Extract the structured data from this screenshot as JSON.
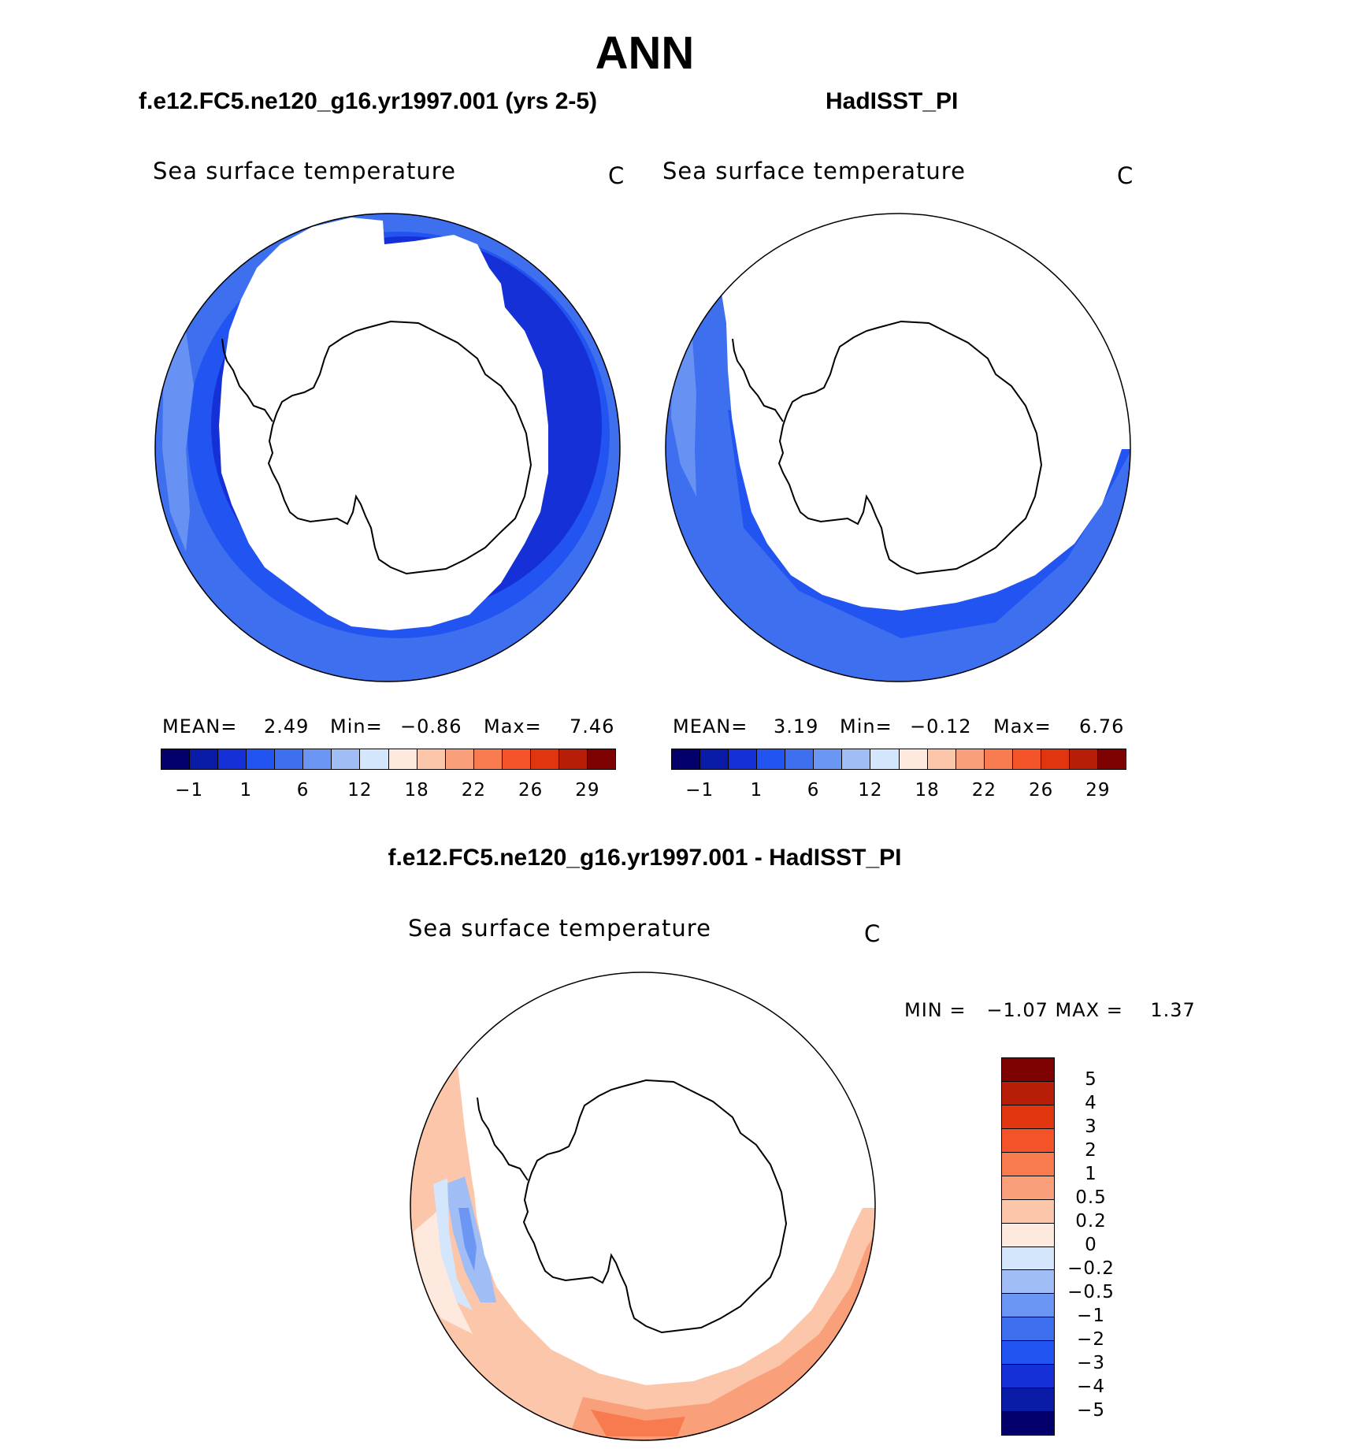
{
  "title": "ANN",
  "panels": {
    "left": {
      "case_title": "f.e12.FC5.ne120_g16.yr1997.001 (yrs 2-5)",
      "map_title": "Sea surface temperature",
      "units": "C",
      "mean_label": "MEAN=",
      "mean": "2.49",
      "min_label": "Min=",
      "min": "−0.86",
      "max_label": "Max=",
      "max": "7.46"
    },
    "right": {
      "case_title": "HadISST_PI",
      "map_title": "Sea surface temperature",
      "units": "C",
      "mean_label": "MEAN=",
      "mean": "3.19",
      "min_label": "Min=",
      "min": "−0.12",
      "max_label": "Max=",
      "max": "6.76"
    },
    "diff": {
      "case_title": "f.e12.FC5.ne120_g16.yr1997.001 - HadISST_PI",
      "map_title": "Sea surface temperature",
      "units": "C",
      "minmax_text": "MIN =   −1.07 MAX =    1.37"
    }
  },
  "sst_colorbar": {
    "colors": [
      "#03006c",
      "#0a1ba8",
      "#1530d6",
      "#2154f0",
      "#3e6fef",
      "#6c96f3",
      "#a0bdf6",
      "#d4e6fb",
      "#fde9dd",
      "#fcc6aa",
      "#f9a07a",
      "#f87a4f",
      "#f5542a",
      "#e0350f",
      "#b81d08",
      "#7e0202"
    ],
    "tick_labels": [
      "−1",
      "1",
      "6",
      "12",
      "18",
      "22",
      "26",
      "29"
    ]
  },
  "diff_colorbar": {
    "colors": [
      "#7e0202",
      "#b81d08",
      "#e0350f",
      "#f5542a",
      "#f87a4f",
      "#f9a07a",
      "#fcc6aa",
      "#fde9dd",
      "#d4e6fb",
      "#a0bdf6",
      "#6c96f3",
      "#3e6fef",
      "#2154f0",
      "#1530d6",
      "#0a1ba8",
      "#03006c"
    ],
    "tick_labels": [
      "5",
      "4",
      "3",
      "2",
      "1",
      "0.5",
      "0.2",
      "0",
      "−0.2",
      "−0.5",
      "−1",
      "−2",
      "−3",
      "−4",
      "−5"
    ]
  },
  "map_colors": {
    "ocean_outer": "#3e6fef",
    "ocean_mid": "#2154f0",
    "ocean_inner": "#1530d6",
    "ocean_light": "#6c96f3",
    "diff_warm": "#fcc6aa",
    "diff_warm2": "#f9a07a",
    "diff_warm3": "#f87a4f",
    "diff_cool": "#a0bdf6",
    "diff_cool2": "#6c96f3",
    "diff_pale": "#d4e6fb",
    "diff_palewarm": "#fde9dd"
  }
}
